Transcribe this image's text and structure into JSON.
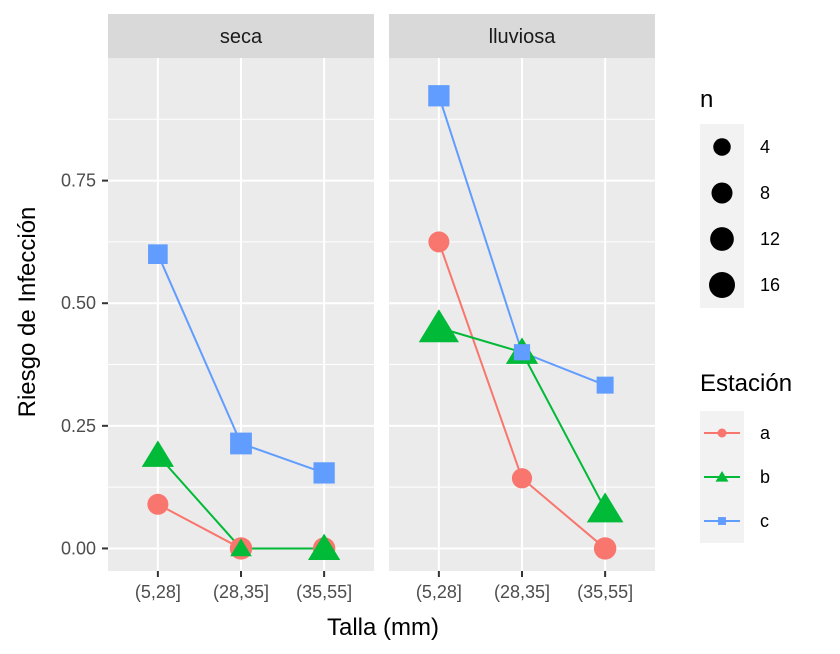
{
  "chart_data": {
    "type": "line",
    "xlabel": "Talla (mm)",
    "ylabel": "Riesgo de Infección",
    "categories": [
      "(5,28]",
      "(28,35]",
      "(35,55]"
    ],
    "y_ticks": [
      0.0,
      0.25,
      0.5,
      0.75
    ],
    "y_tick_labels": [
      "0.00",
      "0.25",
      "0.50",
      "0.75"
    ],
    "ylim": [
      -0.046,
      1.0
    ],
    "grid": true,
    "facet_var_values": [
      "seca",
      "lluviosa"
    ],
    "color_legend": {
      "title": "Estación",
      "entries": [
        {
          "label": "a",
          "color": "#F8766D",
          "shape": "circle"
        },
        {
          "label": "b",
          "color": "#00BA38",
          "shape": "triangle"
        },
        {
          "label": "c",
          "color": "#619CFF",
          "shape": "square"
        }
      ]
    },
    "size_legend": {
      "title": "n",
      "entries": [
        {
          "label": "4",
          "n": 4
        },
        {
          "label": "8",
          "n": 8
        },
        {
          "label": "12",
          "n": 12
        },
        {
          "label": "16",
          "n": 16
        }
      ]
    },
    "facets": [
      {
        "name": "seca",
        "series": [
          {
            "name": "a",
            "values": [
              0.09,
              0.0,
              0.0
            ],
            "n": [
              8,
              10,
              10
            ]
          },
          {
            "name": "b",
            "values": [
              0.19,
              0.0,
              0.0
            ],
            "n": [
              10,
              2,
              10
            ]
          },
          {
            "name": "c",
            "values": [
              0.6,
              0.214,
              0.154
            ],
            "n": [
              10,
              14,
              13
            ]
          }
        ]
      },
      {
        "name": "lluviosa",
        "series": [
          {
            "name": "a",
            "values": [
              0.625,
              0.143,
              0.0
            ],
            "n": [
              8,
              7,
              10
            ]
          },
          {
            "name": "b",
            "values": [
              0.45,
              0.4,
              0.08
            ],
            "n": [
              20,
              10,
              15
            ]
          },
          {
            "name": "c",
            "values": [
              0.923,
              0.4,
              0.333
            ],
            "n": [
              13,
              5,
              6
            ]
          }
        ]
      }
    ]
  }
}
